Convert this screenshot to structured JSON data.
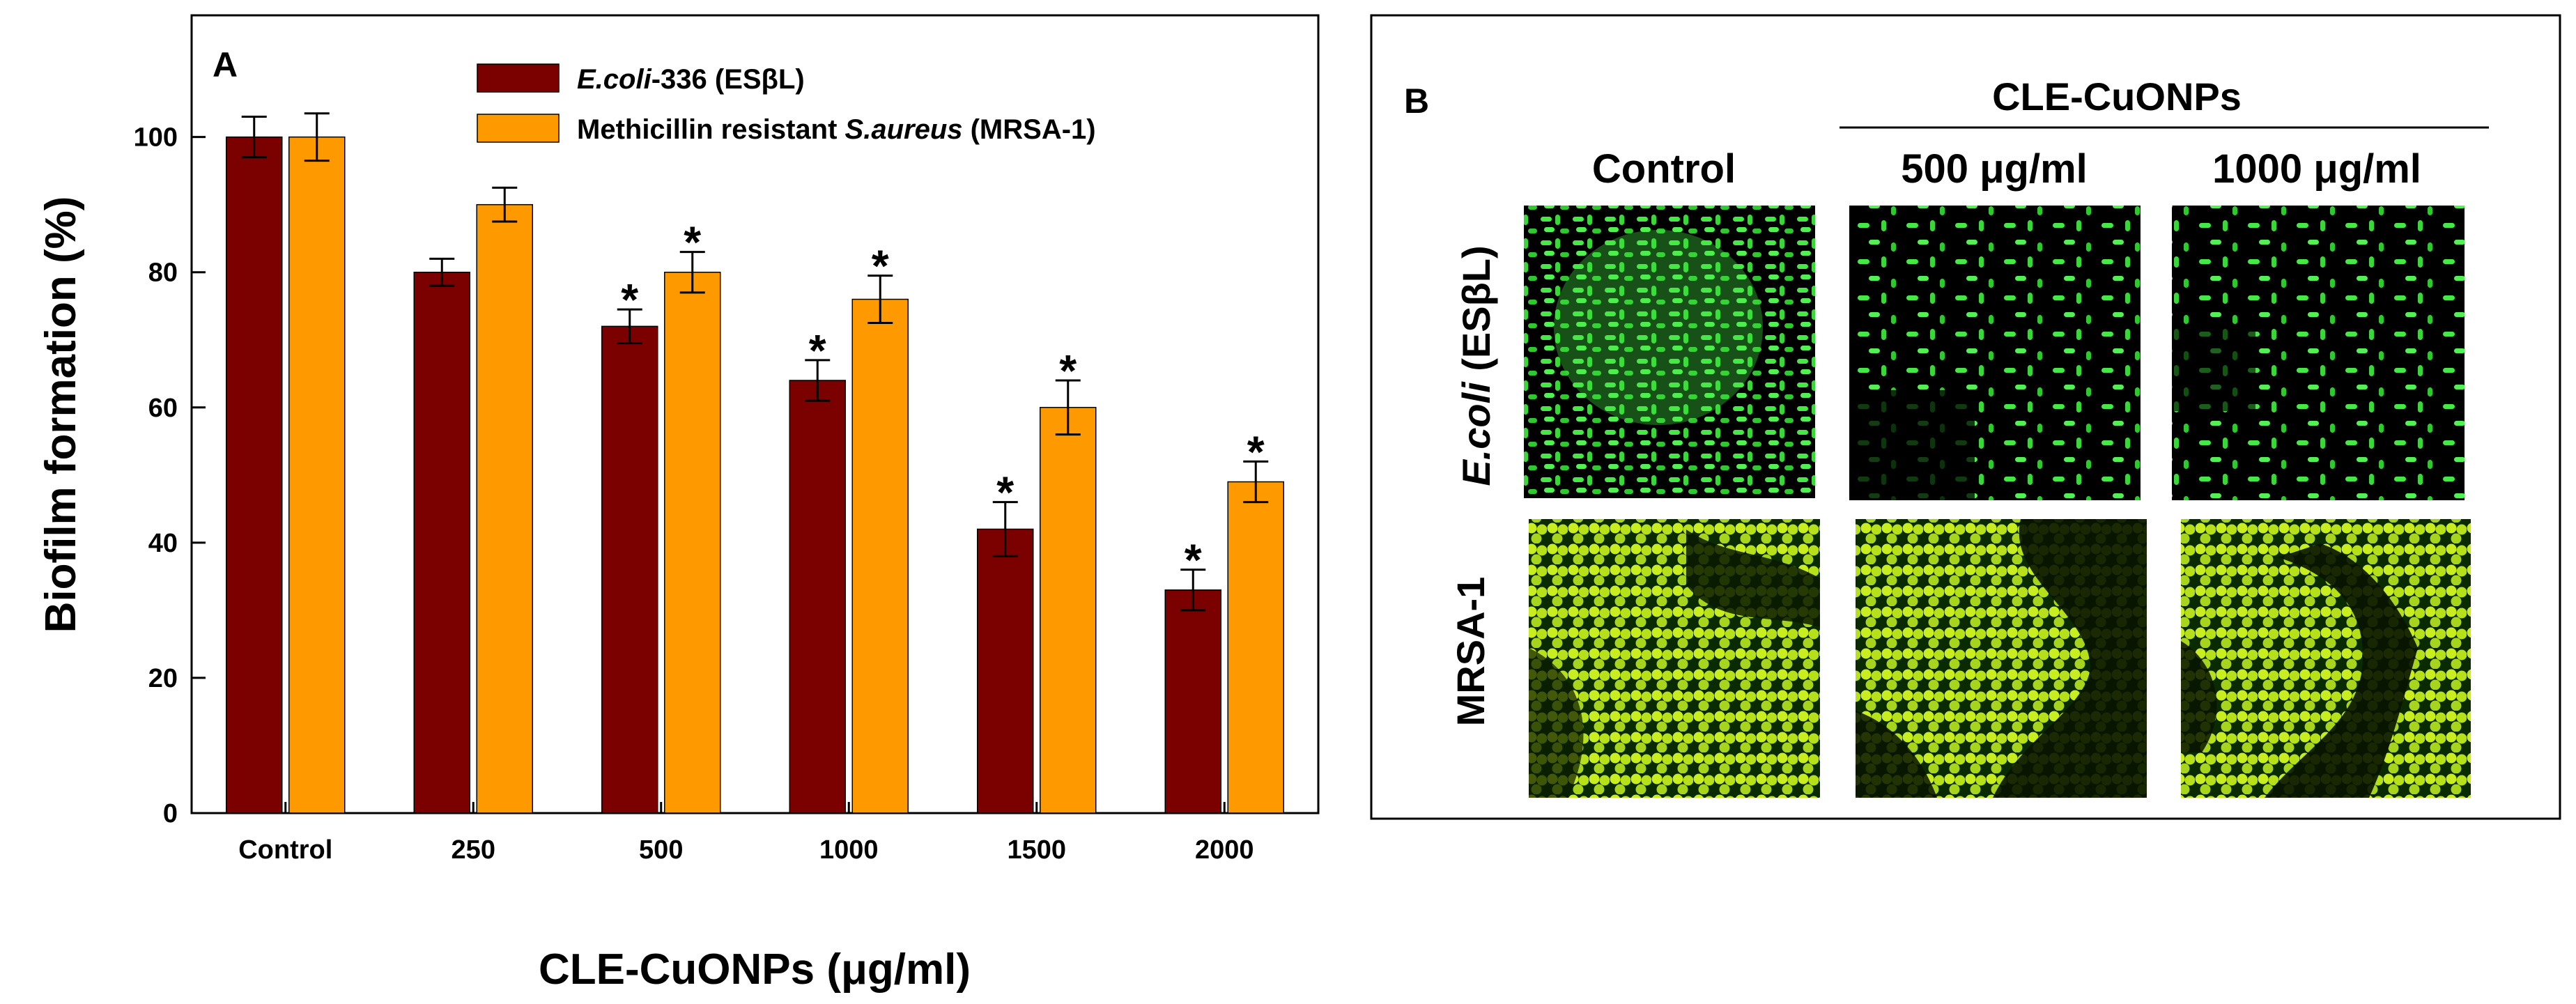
{
  "chart_data": {
    "type": "bar",
    "panel_label": "A",
    "categories": [
      "Control",
      "250",
      "500",
      "1000",
      "1500",
      "2000"
    ],
    "series": [
      {
        "name": "E.coli-336 (ESβL)",
        "name_italic": "E.coli",
        "name_rest": "-336 (ESβL)",
        "color": "#7b0000",
        "values": [
          100,
          80,
          72,
          64,
          42,
          33
        ],
        "errors": [
          3,
          2,
          2.5,
          3,
          4,
          3
        ],
        "significant": [
          false,
          false,
          true,
          true,
          true,
          true
        ]
      },
      {
        "name": "Methicillin resistant S.aureus (MRSA-1)",
        "name_pre": "Methicillin resistant ",
        "name_italic": "S.aureus",
        "name_post": " (MRSA-1)",
        "color": "#ff9900",
        "values": [
          100,
          90,
          80,
          76,
          60,
          49
        ],
        "errors": [
          3.5,
          2.5,
          3,
          3.5,
          4,
          3
        ],
        "significant": [
          false,
          false,
          true,
          true,
          true,
          true
        ]
      }
    ],
    "significance_marker": "*",
    "xlabel": "CLE-CuONPs (μg/ml)",
    "ylabel": "Biofilm formation (%)",
    "ylim": [
      0,
      118
    ],
    "yticks": [
      0,
      20,
      40,
      60,
      80,
      100
    ],
    "grid": false,
    "legend_position": "top"
  },
  "panel_b": {
    "label": "B",
    "group_header": "CLE-CuONPs",
    "columns": [
      "Control",
      "500 μg/ml",
      "1000 μg/ml"
    ],
    "rows": [
      {
        "label_italic": "E.coli",
        "label_rest": " (ESβL)",
        "fill": "#27c227",
        "cell": "#45e845"
      },
      {
        "label": "MRSA-1",
        "fill": "#a9d81c",
        "cell": "#c9ee20"
      }
    ]
  }
}
